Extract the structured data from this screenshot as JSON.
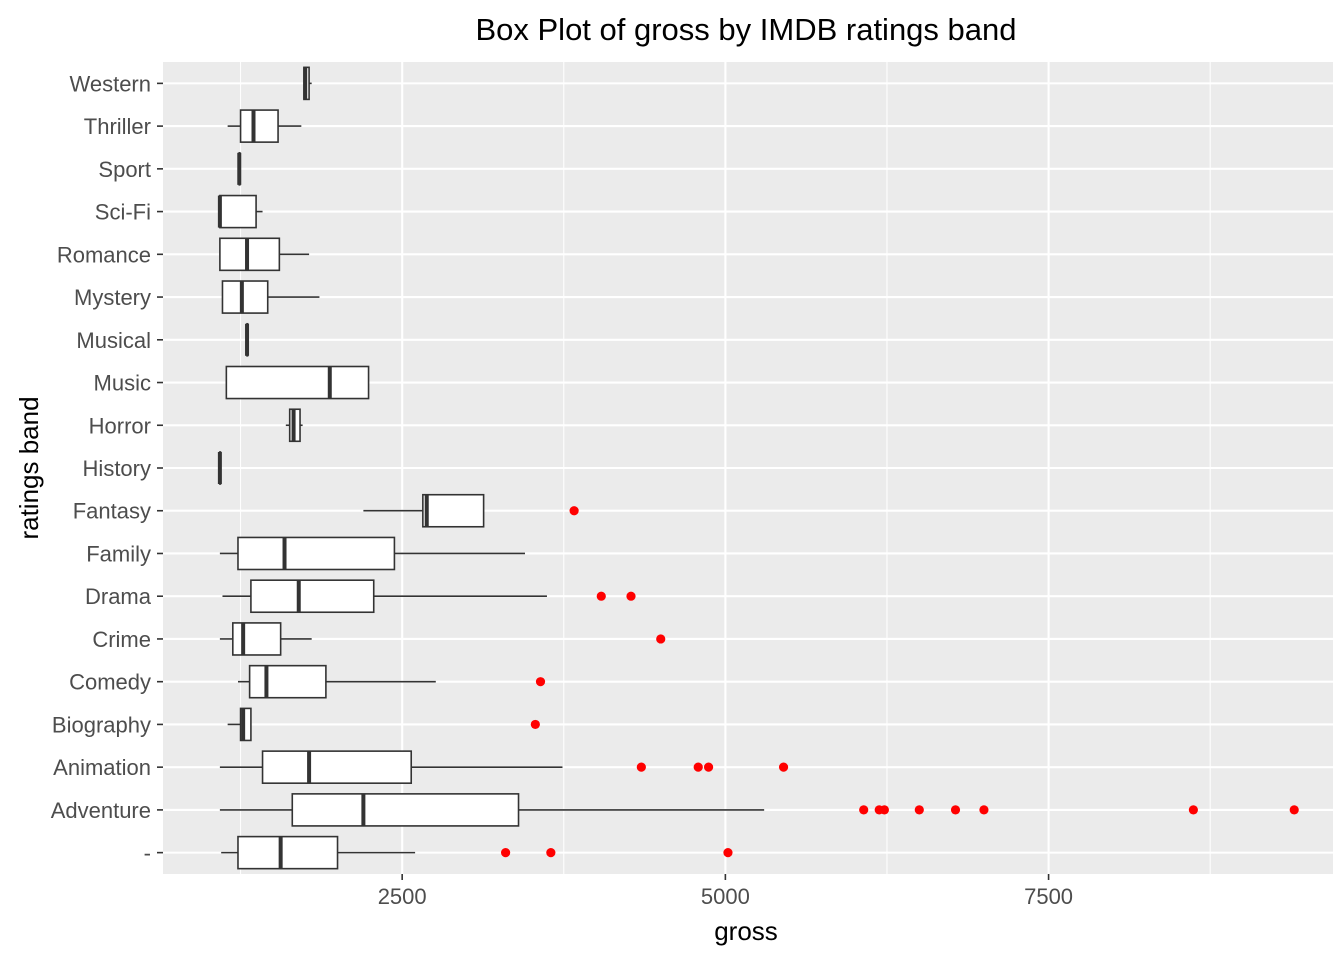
{
  "chart_data": {
    "type": "boxplot",
    "title": "Box Plot of gross by IMDB ratings band",
    "xlabel": "gross",
    "ylabel": "ratings band",
    "xlim": [
      650,
      9700
    ],
    "xticks": [
      2500,
      5000,
      7500
    ],
    "xtick_labels": [
      "2500",
      "5000",
      "7500"
    ],
    "grid": true,
    "colors": {
      "panel": "#EBEBEB",
      "grid": "#FFFFFF",
      "box_outline": "#333333",
      "outlier": "#FF0000"
    },
    "categories": [
      "",
      "Adventure",
      "Animation",
      "Biography",
      "Comedy",
      "Crime",
      "Drama",
      "Family",
      "Fantasy",
      "History",
      "Horror",
      "Music",
      "Musical",
      "Mystery",
      "Romance",
      "Sci-Fi",
      "Sport",
      "Thriller",
      "Western"
    ],
    "boxes": [
      {
        "category": "",
        "whisker_low": 1100,
        "q1": 1230,
        "median": 1560,
        "q3": 2000,
        "whisker_high": 2600,
        "outliers": [
          3300,
          3650,
          5020
        ]
      },
      {
        "category": "Adventure",
        "whisker_low": 1090,
        "q1": 1650,
        "median": 2200,
        "q3": 3400,
        "whisker_high": 5300,
        "outliers": [
          6070,
          6190,
          6230,
          6500,
          6780,
          7000,
          8620,
          9400
        ]
      },
      {
        "category": "Animation",
        "whisker_low": 1090,
        "q1": 1420,
        "median": 1780,
        "q3": 2570,
        "whisker_high": 3740,
        "outliers": [
          4350,
          4790,
          4870,
          5450
        ]
      },
      {
        "category": "Biography",
        "whisker_low": 1150,
        "q1": 1250,
        "median": 1270,
        "q3": 1330,
        "whisker_high": 1330,
        "outliers": [
          3530
        ]
      },
      {
        "category": "Comedy",
        "whisker_low": 1230,
        "q1": 1320,
        "median": 1450,
        "q3": 1910,
        "whisker_high": 2760,
        "outliers": [
          3570
        ]
      },
      {
        "category": "Crime",
        "whisker_low": 1090,
        "q1": 1190,
        "median": 1270,
        "q3": 1560,
        "whisker_high": 1800,
        "outliers": [
          4500
        ]
      },
      {
        "category": "Drama",
        "whisker_low": 1110,
        "q1": 1330,
        "median": 1700,
        "q3": 2280,
        "whisker_high": 3620,
        "outliers": [
          4040,
          4270
        ]
      },
      {
        "category": "Family",
        "whisker_low": 1090,
        "q1": 1230,
        "median": 1590,
        "q3": 2440,
        "whisker_high": 3450,
        "outliers": []
      },
      {
        "category": "Fantasy",
        "whisker_low": 2200,
        "q1": 2660,
        "median": 2690,
        "q3": 3130,
        "whisker_high": 3130,
        "outliers": [
          3830
        ]
      },
      {
        "category": "History",
        "whisker_low": 1090,
        "q1": 1090,
        "median": 1090,
        "q3": 1090,
        "whisker_high": 1090,
        "outliers": []
      },
      {
        "category": "Horror",
        "whisker_low": 1600,
        "q1": 1630,
        "median": 1660,
        "q3": 1710,
        "whisker_high": 1730,
        "outliers": []
      },
      {
        "category": "Music",
        "whisker_low": 1140,
        "q1": 1140,
        "median": 1940,
        "q3": 2240,
        "whisker_high": 2240,
        "outliers": []
      },
      {
        "category": "Musical",
        "whisker_low": 1300,
        "q1": 1300,
        "median": 1300,
        "q3": 1300,
        "whisker_high": 1300,
        "outliers": []
      },
      {
        "category": "Mystery",
        "whisker_low": 1110,
        "q1": 1110,
        "median": 1260,
        "q3": 1460,
        "whisker_high": 1860,
        "outliers": []
      },
      {
        "category": "Romance",
        "whisker_low": 1090,
        "q1": 1090,
        "median": 1300,
        "q3": 1550,
        "whisker_high": 1780,
        "outliers": []
      },
      {
        "category": "Sci-Fi",
        "whisker_low": 1090,
        "q1": 1090,
        "median": 1090,
        "q3": 1370,
        "whisker_high": 1420,
        "outliers": []
      },
      {
        "category": "Sport",
        "whisker_low": 1240,
        "q1": 1240,
        "median": 1240,
        "q3": 1240,
        "whisker_high": 1240,
        "outliers": []
      },
      {
        "category": "Thriller",
        "whisker_low": 1150,
        "q1": 1250,
        "median": 1350,
        "q3": 1540,
        "whisker_high": 1720,
        "outliers": []
      },
      {
        "category": "Western",
        "whisker_low": 1740,
        "q1": 1740,
        "median": 1750,
        "q3": 1780,
        "whisker_high": 1800,
        "outliers": []
      }
    ]
  }
}
